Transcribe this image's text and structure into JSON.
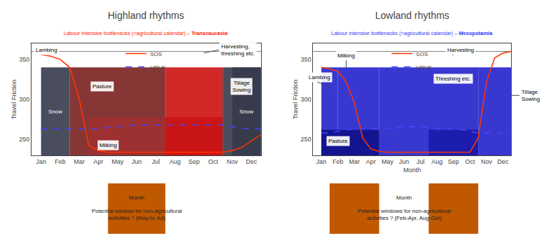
{
  "chart_data": [
    {
      "type": "line",
      "title": "Highland rhythms",
      "subtitle": {
        "text": "Labour intensive bottlenecks (=agricultural calendar) – ",
        "bold": "Transcaucasia",
        "color": "#ff2200"
      },
      "ylabel": "Travel Friction",
      "x": [
        1,
        1.5,
        2,
        2.5,
        3,
        3.5,
        4,
        4.5,
        5,
        5.5,
        6,
        6.5,
        7,
        7.5,
        8,
        8.5,
        9,
        9.5,
        10,
        10.5,
        11,
        11.5,
        12,
        12.5
      ],
      "series": [
        {
          "name": "SOS",
          "color": "#ff3300",
          "line_style": "solid",
          "values": [
            356,
            354,
            350,
            340,
            300,
            242,
            236,
            234,
            234,
            234,
            234,
            234,
            234,
            234,
            234,
            234,
            234,
            234,
            234,
            234,
            236,
            240,
            248,
            256
          ]
        },
        {
          "name": "URUK",
          "color": "#4444ff",
          "line_style": "dashed",
          "values": [
            263,
            263,
            263,
            263,
            263,
            263,
            263,
            265,
            266,
            267,
            268,
            268,
            268,
            268,
            268,
            268,
            268,
            268,
            268,
            268,
            266,
            264,
            263,
            263
          ]
        }
      ],
      "xlim": [
        0.5,
        12.5
      ],
      "xticks": [
        {
          "value": 1,
          "label": "Jan"
        },
        {
          "value": 2,
          "label": "Feb"
        },
        {
          "value": 3,
          "label": "Mar"
        },
        {
          "value": 4,
          "label": "Apr"
        },
        {
          "value": 5,
          "label": "May"
        },
        {
          "value": 6,
          "label": "Jun"
        },
        {
          "value": 7,
          "label": "Jul"
        },
        {
          "value": 8,
          "label": "Aug"
        },
        {
          "value": 9,
          "label": "Sep"
        },
        {
          "value": 10,
          "label": "Oct"
        },
        {
          "value": 11,
          "label": "Nov"
        },
        {
          "value": 12,
          "label": "Dec"
        }
      ],
      "ylim": [
        230,
        370
      ],
      "yticks": [
        250,
        300,
        350
      ],
      "grid": false,
      "legend": "upper center",
      "bands": [
        {
          "x": [
            1,
            2.5
          ],
          "y": [
            230,
            340
          ],
          "color": "#353a4a"
        },
        {
          "x": [
            11,
            12.5
          ],
          "y": [
            230,
            340
          ],
          "color": "#353a4a"
        },
        {
          "x": [
            2.5,
            7.5
          ],
          "y": [
            230,
            340
          ],
          "color": "#7a2020"
        },
        {
          "x": [
            3.5,
            10.5
          ],
          "y": [
            230,
            278
          ],
          "color": "#a03030"
        },
        {
          "x": [
            7.5,
            10.5
          ],
          "y": [
            230,
            340
          ],
          "color": "#cc1111"
        },
        {
          "x": [
            10.5,
            12.5
          ],
          "y": [
            230,
            340
          ],
          "color": "#353a4a"
        }
      ],
      "hlines": [
        360
      ],
      "annotations": [
        {
          "text": "Snow",
          "x": 1.75,
          "y": 285,
          "color": "#ffffff"
        },
        {
          "text": "Snow",
          "x": 11.75,
          "y": 285,
          "color": "#ffffff"
        },
        {
          "text": "Lambing",
          "x": 0.6,
          "y": 362,
          "anchor": "left",
          "arrow": [
            1.8,
            358
          ]
        },
        {
          "text": "Pasture",
          "x": 4.2,
          "y": 316
        },
        {
          "text": "Milking",
          "x": 4.5,
          "y": 243
        },
        {
          "text": "Harvesting,\nthreshing etc.",
          "x": 10.3,
          "y": 362,
          "anchor": "left",
          "arrow": [
            9.5,
            358
          ]
        },
        {
          "text": "Tillage\nSowing",
          "x": 11.5,
          "y": 316
        }
      ],
      "windows": {
        "ranges": [
          [
            4.5,
            7.5
          ]
        ],
        "color": "#c05800",
        "heading": "Month",
        "text": "Potential window for non-agricultural\nactivities ? (May to Jul)"
      }
    },
    {
      "type": "line",
      "title": "Lowland rhythms",
      "subtitle": {
        "text": "Labour intensive bottlenecks (=agricultural calendar) – ",
        "bold": "Mesopotamia",
        "color": "#3333ff"
      },
      "xlabel": "Month",
      "ylabel": "Travel Friction",
      "x": [
        1,
        1.5,
        2,
        2.5,
        3,
        3.5,
        4,
        4.5,
        5,
        5.5,
        6,
        6.5,
        7,
        7.5,
        8,
        8.5,
        9,
        9.5,
        10,
        10.5,
        11,
        11.5,
        12,
        12.5
      ],
      "series": [
        {
          "name": "SOS",
          "color": "#ff3300",
          "line_style": "solid",
          "values": [
            340,
            338,
            335,
            322,
            296,
            252,
            238,
            235,
            234,
            234,
            234,
            234,
            234,
            234,
            234,
            234,
            234,
            234,
            234,
            252,
            322,
            352,
            358,
            360
          ]
        },
        {
          "name": "URUK",
          "color": "#4444ff",
          "line_style": "dashed",
          "values": [
            258,
            258,
            260,
            262,
            263,
            263,
            263,
            263,
            263,
            265,
            266,
            266,
            266,
            265,
            263,
            263,
            263,
            262,
            260,
            258,
            258,
            258,
            258,
            258
          ]
        }
      ],
      "xlim": [
        0.5,
        12.5
      ],
      "xticks": [
        {
          "value": 1,
          "label": "Jan"
        },
        {
          "value": 2,
          "label": "Feb"
        },
        {
          "value": 3,
          "label": "Mar"
        },
        {
          "value": 4,
          "label": "Apr"
        },
        {
          "value": 5,
          "label": "May"
        },
        {
          "value": 6,
          "label": "Jun"
        },
        {
          "value": 7,
          "label": "Jul"
        },
        {
          "value": 8,
          "label": "Aug"
        },
        {
          "value": 9,
          "label": "Sep"
        },
        {
          "value": 10,
          "label": "Oct"
        },
        {
          "value": 11,
          "label": "Nov"
        },
        {
          "value": 12,
          "label": "Dec"
        }
      ],
      "ylim": [
        230,
        370
      ],
      "yticks": [
        250,
        300,
        350
      ],
      "grid": false,
      "legend": "upper center",
      "bands": [
        {
          "x": [
            1,
            2
          ],
          "y": [
            230,
            340
          ],
          "color": "#2222cc"
        },
        {
          "x": [
            2,
            4.5
          ],
          "y": [
            230,
            340
          ],
          "color": "#2222cc"
        },
        {
          "x": [
            10.5,
            12.5
          ],
          "y": [
            230,
            340
          ],
          "color": "#2222cc"
        },
        {
          "x": [
            4.5,
            10.5
          ],
          "y": [
            230,
            340
          ],
          "color": "#2222cc"
        },
        {
          "x": [
            1,
            4.5
          ],
          "y": [
            230,
            262
          ],
          "color": "#111188"
        },
        {
          "x": [
            7.5,
            10.5
          ],
          "y": [
            230,
            262
          ],
          "color": "#1a1aaa"
        }
      ],
      "hlines": [
        360
      ],
      "annotations": [
        {
          "text": "Lambing",
          "x": 0.1,
          "y": 328,
          "anchor": "left",
          "arrow": [
            1.5,
            315
          ]
        },
        {
          "text": "Milking",
          "x": 2.5,
          "y": 355,
          "arrow": [
            2.5,
            340
          ]
        },
        {
          "text": "Pasture",
          "x": 2.0,
          "y": 248
        },
        {
          "text": "Harvesting",
          "x": 8.5,
          "y": 362,
          "anchor": "left",
          "arrow": [
            9.0,
            355
          ]
        },
        {
          "text": "Threshing etc.",
          "x": 9.0,
          "y": 326
        },
        {
          "text": "Tillage\nSowing",
          "x": 13.0,
          "y": 305,
          "anchor": "left",
          "arrow": [
            12.5,
            305
          ]
        }
      ],
      "windows": {
        "ranges": [
          [
            1.5,
            4.5
          ],
          [
            7.5,
            10.5
          ]
        ],
        "color": "#c05800",
        "heading": "Month",
        "text": "Potential windows for non-agricultural\nactivities ? (Feb-Apr, Aug-Oct)"
      }
    }
  ]
}
